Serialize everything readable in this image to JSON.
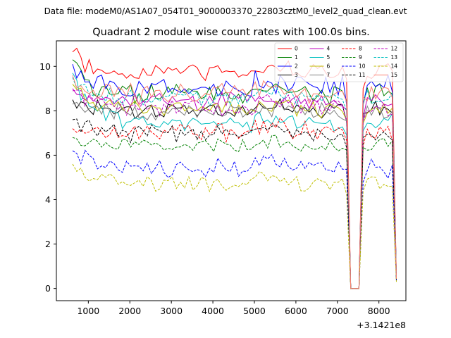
{
  "figure": {
    "suptitle": "Data file: modeM0/AS1A07_054T01_9000003370_22803cztM0_level2_quad_clean.evt"
  },
  "chart_data": {
    "type": "line",
    "title": "Quadrant 2 module wise count rates with 100.0s bins.",
    "xlabel": "",
    "ylabel": "",
    "x_offset_label": "+3.1421e8",
    "xlim": [
      230,
      8650
    ],
    "ylim": [
      -0.55,
      11.15
    ],
    "xticks": [
      1000,
      2000,
      3000,
      4000,
      5000,
      6000,
      7000,
      8000
    ],
    "yticks": [
      0,
      2,
      4,
      6,
      8,
      10
    ],
    "grid": false,
    "legend": {
      "placement": "top-right",
      "columns": 4
    },
    "x_start": 620,
    "x_step": 100,
    "num_points": 79,
    "gap": {
      "points": [
        67,
        68,
        69
      ],
      "value": 0
    },
    "series": [
      {
        "name": "0",
        "color": "#ff0000",
        "style": "solid",
        "mean": 9.75,
        "first": 10.65,
        "last": 0.55,
        "amp": 0.3,
        "seed": 1
      },
      {
        "name": "1",
        "color": "#008000",
        "style": "solid",
        "mean": 8.75,
        "first": 10.3,
        "last": 0.5,
        "amp": 0.35,
        "seed": 2
      },
      {
        "name": "2",
        "color": "#0000ff",
        "style": "solid",
        "mean": 9.05,
        "first": 10.1,
        "last": 0.5,
        "amp": 0.4,
        "seed": 3
      },
      {
        "name": "3",
        "color": "#000000",
        "style": "solid",
        "mean": 8.0,
        "first": 8.5,
        "last": 0.45,
        "amp": 0.3,
        "seed": 4
      },
      {
        "name": "4",
        "color": "#bf00bf",
        "style": "solid",
        "mean": 8.45,
        "first": 9.0,
        "last": 0.45,
        "amp": 0.3,
        "seed": 5
      },
      {
        "name": "5",
        "color": "#00bfbf",
        "style": "solid",
        "mean": 7.45,
        "first": 9.7,
        "last": 0.4,
        "amp": 0.3,
        "seed": 6
      },
      {
        "name": "6",
        "color": "#bfbf00",
        "style": "solid",
        "mean": 8.05,
        "first": 9.2,
        "last": 0.45,
        "amp": 0.3,
        "seed": 7
      },
      {
        "name": "7",
        "color": "#808080",
        "style": "solid",
        "mean": 7.95,
        "first": 8.3,
        "last": 0.4,
        "amp": 0.3,
        "seed": 8
      },
      {
        "name": "8",
        "color": "#ff0000",
        "style": "dashed",
        "mean": 7.05,
        "first": 7.2,
        "last": 0.4,
        "amp": 0.35,
        "seed": 9
      },
      {
        "name": "9",
        "color": "#008000",
        "style": "dashed",
        "mean": 6.45,
        "first": 6.8,
        "last": 0.4,
        "amp": 0.25,
        "seed": 10
      },
      {
        "name": "10",
        "color": "#0000ff",
        "style": "dashed",
        "mean": 5.45,
        "first": 6.2,
        "last": 0.35,
        "amp": 0.35,
        "seed": 11
      },
      {
        "name": "11",
        "color": "#000000",
        "style": "dashed",
        "mean": 6.95,
        "first": 7.6,
        "last": 0.4,
        "amp": 0.3,
        "seed": 12
      },
      {
        "name": "12",
        "color": "#bf00bf",
        "style": "dashed",
        "mean": 8.15,
        "first": 8.9,
        "last": 0.45,
        "amp": 0.3,
        "seed": 13
      },
      {
        "name": "13",
        "color": "#00bfbf",
        "style": "dashed",
        "mean": 8.55,
        "first": 9.5,
        "last": 0.45,
        "amp": 0.3,
        "seed": 14
      },
      {
        "name": "14",
        "color": "#bfbf00",
        "style": "dashed",
        "mean": 4.7,
        "first": 5.6,
        "last": 0.3,
        "amp": 0.3,
        "seed": 15
      },
      {
        "name": "15",
        "color": "#fa8072",
        "style": "solid",
        "mean": 8.75,
        "first": 9.6,
        "last": 0.45,
        "amp": 0.35,
        "seed": 16
      }
    ]
  }
}
